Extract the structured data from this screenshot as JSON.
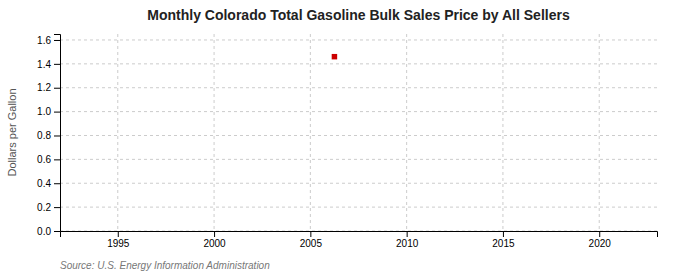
{
  "chart_data": {
    "type": "scatter",
    "title": "Monthly Colorado Total Gasoline Bulk Sales Price by All Sellers",
    "ylabel": "Dollars per Gallon",
    "source": "Source: U.S. Energy Information Administration",
    "x": [
      2006.25
    ],
    "values": [
      1.46
    ],
    "color": "#cc0000",
    "marker": "square",
    "xlim": [
      1992,
      2023
    ],
    "xticks": [
      1995,
      2000,
      2005,
      2010,
      2015,
      2020
    ],
    "ylim": [
      0.0,
      1.65
    ],
    "yticks": [
      {
        "value": 0.0,
        "label": "0.0"
      },
      0.2,
      0.4,
      0.6,
      0.8,
      {
        "value": 1.0,
        "label": "1.0"
      },
      1.2,
      1.4,
      1.6
    ],
    "grid": true
  }
}
